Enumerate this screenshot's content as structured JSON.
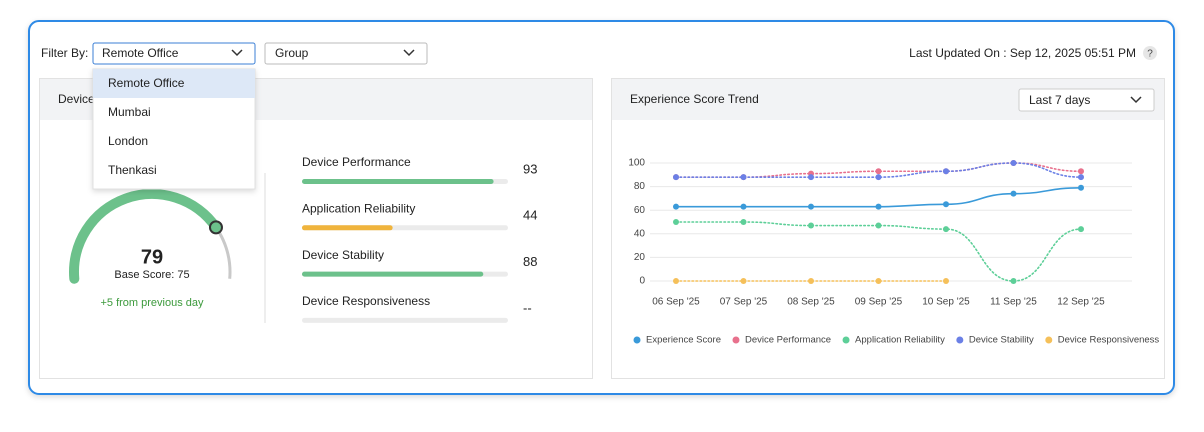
{
  "filter": {
    "label": "Filter By:",
    "location": "Remote Office",
    "group": "Group",
    "options": [
      "Remote Office",
      "Mumbai",
      "London",
      "Thenkasi"
    ]
  },
  "last_updated": "Last Updated On : Sep 12, 2025 05:51 PM",
  "help": "?",
  "device_panel": {
    "title": "Device",
    "gauge": {
      "score": 79,
      "base_label": "Base Score:",
      "base_score": 75,
      "change": "+5 from previous day",
      "range": [
        0,
        100
      ],
      "color": "#6cc18b"
    },
    "range": [
      0,
      100
    ],
    "metrics": [
      {
        "name": "Device Performance",
        "value": 93,
        "color": "#6cc18b"
      },
      {
        "name": "Application Reliability",
        "value": 44,
        "color": "#f0b43c"
      },
      {
        "name": "Device Stability",
        "value": 88,
        "color": "#6cc18b"
      },
      {
        "name": "Device Responsiveness",
        "value": null,
        "value_label": "--",
        "color": "#6cc18b"
      }
    ]
  },
  "chart_data": {
    "type": "line",
    "title": "Experience Score Trend",
    "period": "Last 7 days",
    "x": [
      "06 Sep '25",
      "07 Sep '25",
      "08 Sep '25",
      "09 Sep '25",
      "10 Sep '25",
      "11 Sep '25",
      "12 Sep '25"
    ],
    "series": [
      {
        "name": "Experience Score",
        "color": "#3a9ad9",
        "style": "solid",
        "values": [
          63,
          63,
          63,
          63,
          65,
          74,
          79
        ]
      },
      {
        "name": "Device Performance",
        "color": "#e8718d",
        "style": "dotted",
        "values": [
          88,
          88,
          91,
          93,
          93,
          100,
          93
        ]
      },
      {
        "name": "Application Reliability",
        "color": "#5dcf98",
        "style": "dotted",
        "values": [
          50,
          50,
          47,
          47,
          44,
          0,
          44
        ]
      },
      {
        "name": "Device Stability",
        "color": "#6b80e6",
        "style": "dotted",
        "values": [
          88,
          88,
          88,
          88,
          93,
          100,
          88
        ]
      },
      {
        "name": "Device Responsiveness",
        "color": "#f5c05a",
        "style": "dotted",
        "values": [
          0,
          0,
          0,
          0,
          0,
          null,
          null
        ]
      }
    ],
    "ylim": [
      0,
      100
    ],
    "yticks": [
      0,
      20,
      40,
      60,
      80,
      100
    ],
    "grid": true,
    "legend": "bottom"
  }
}
